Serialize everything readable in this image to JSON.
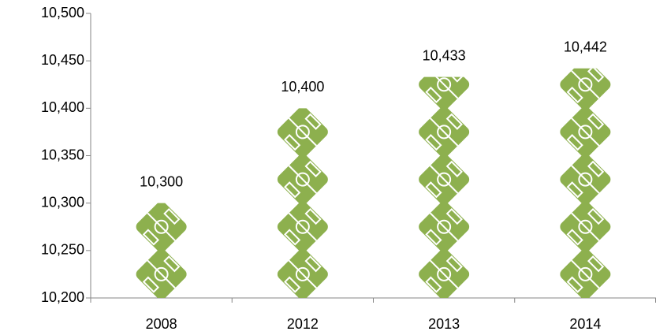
{
  "chart_data": {
    "type": "pictograph",
    "categories": [
      "2008",
      "2012",
      "2013",
      "2014"
    ],
    "values": [
      10300,
      10400,
      10433,
      10442
    ],
    "value_labels": [
      "10,300",
      "10,400",
      "10,433",
      "10,442"
    ],
    "color": "#8db04e",
    "ylim": [
      10200,
      10500
    ],
    "yticks": [
      {
        "value": 10200,
        "label": "10,200"
      },
      {
        "value": 10250,
        "label": "10,250"
      },
      {
        "value": 10300,
        "label": "10,300"
      },
      {
        "value": 10350,
        "label": "10,350"
      },
      {
        "value": 10400,
        "label": "10,400"
      },
      {
        "value": 10450,
        "label": "10,450"
      },
      {
        "value": 10500,
        "label": "10,500"
      }
    ]
  }
}
